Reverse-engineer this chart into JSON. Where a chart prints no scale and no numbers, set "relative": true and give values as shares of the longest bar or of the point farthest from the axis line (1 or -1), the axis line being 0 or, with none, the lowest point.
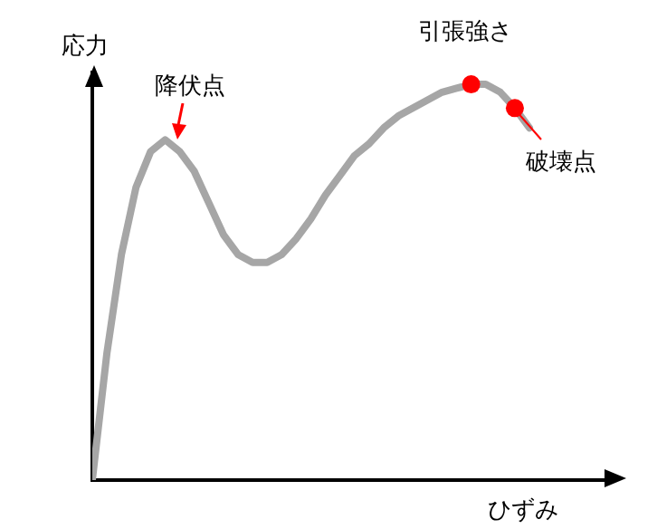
{
  "chart_data": {
    "type": "line",
    "relative": true,
    "xlabel": "ひずみ",
    "ylabel": "応力",
    "categories": [
      null,
      null,
      null,
      null,
      null,
      null,
      null,
      null,
      null,
      null,
      null,
      null,
      null,
      null,
      null,
      null,
      null,
      null,
      null,
      null,
      null,
      null,
      null,
      null,
      null,
      null,
      null,
      null,
      null,
      null,
      null
    ],
    "series": [
      {
        "color": "#a6a6a6",
        "values": [
          0,
          0.32,
          0.57,
          0.74,
          0.83,
          0.86,
          0.83,
          0.78,
          0.7,
          0.62,
          0.57,
          0.55,
          0.55,
          0.57,
          0.61,
          0.66,
          0.72,
          0.77,
          0.82,
          0.85,
          0.89,
          0.92,
          0.94,
          0.96,
          0.98,
          0.99,
          1,
          1,
          0.98,
          0.94,
          0.89
        ],
        "colors": [
          null,
          null,
          null,
          null,
          null,
          null,
          null,
          null,
          null,
          null,
          null,
          null,
          null,
          null,
          null,
          null,
          null,
          null,
          null,
          null,
          null,
          null,
          null,
          null,
          null,
          null,
          "#ff0000",
          null,
          null,
          "#ff0000",
          null
        ]
      }
    ],
    "annotations": [
      "降伏点",
      "引張強さ",
      "破壊点"
    ],
    "grid": false,
    "legend": false,
    "line_style": "solid"
  }
}
